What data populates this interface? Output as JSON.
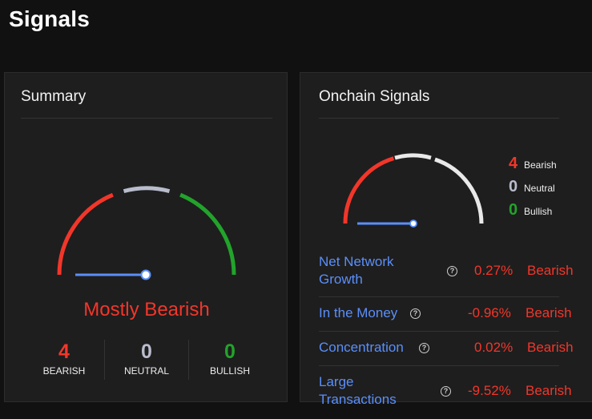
{
  "page": {
    "title": "Signals"
  },
  "summary": {
    "title": "Summary",
    "verdict": "Mostly Bearish",
    "gauge_level": 0.0,
    "counts": [
      {
        "value": "4",
        "label": "BEARISH",
        "color": "#f2362a"
      },
      {
        "value": "0",
        "label": "NEUTRAL",
        "color": "#b8bccc"
      },
      {
        "value": "0",
        "label": "BULLISH",
        "color": "#22a32b"
      }
    ]
  },
  "onchain": {
    "title": "Onchain Signals",
    "gauge_level": 0.0,
    "legend": [
      {
        "value": "4",
        "label": "Bearish",
        "color": "#f2362a"
      },
      {
        "value": "0",
        "label": "Neutral",
        "color": "#b8bccc"
      },
      {
        "value": "0",
        "label": "Bullish",
        "color": "#22a32b"
      }
    ],
    "signals": [
      {
        "name": "Net Network Growth",
        "value": "0.27%",
        "sentiment": "Bearish"
      },
      {
        "name": "In the Money",
        "value": "-0.96%",
        "sentiment": "Bearish"
      },
      {
        "name": "Concentration",
        "value": "0.02%",
        "sentiment": "Bearish"
      },
      {
        "name": "Large Transactions",
        "value": "-9.52%",
        "sentiment": "Bearish"
      }
    ],
    "help_glyph": "?"
  },
  "colors": {
    "bearish": "#f2362a",
    "neutral": "#b8bccc",
    "bullish": "#22a32b",
    "link": "#5b8ff9",
    "needle": "#5b8ff9"
  }
}
